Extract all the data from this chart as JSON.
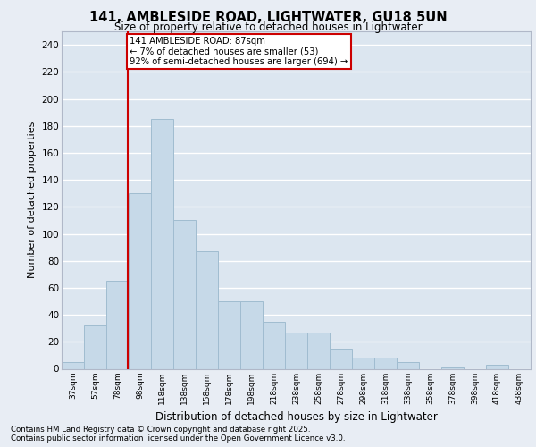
{
  "title1": "141, AMBLESIDE ROAD, LIGHTWATER, GU18 5UN",
  "title2": "Size of property relative to detached houses in Lightwater",
  "xlabel": "Distribution of detached houses by size in Lightwater",
  "ylabel": "Number of detached properties",
  "annotation_line1": "141 AMBLESIDE ROAD: 87sqm",
  "annotation_line2": "← 7% of detached houses are smaller (53)",
  "annotation_line3": "92% of semi-detached houses are larger (694) →",
  "categories": [
    "37sqm",
    "57sqm",
    "78sqm",
    "98sqm",
    "118sqm",
    "138sqm",
    "158sqm",
    "178sqm",
    "198sqm",
    "218sqm",
    "238sqm",
    "258sqm",
    "278sqm",
    "298sqm",
    "318sqm",
    "338sqm",
    "358sqm",
    "378sqm",
    "398sqm",
    "418sqm",
    "438sqm"
  ],
  "values": [
    5,
    32,
    65,
    130,
    185,
    110,
    87,
    50,
    50,
    35,
    27,
    27,
    15,
    8,
    8,
    5,
    0,
    1,
    0,
    3,
    0
  ],
  "bar_color": "#c6d9e8",
  "bar_edgecolor": "#a0bcd0",
  "property_line_color": "#cc0000",
  "annotation_box_edgecolor": "#cc0000",
  "bg_color": "#e8edf4",
  "plot_bg_color": "#dce6f0",
  "grid_color": "#ffffff",
  "ylim": [
    0,
    250
  ],
  "yticks": [
    0,
    20,
    40,
    60,
    80,
    100,
    120,
    140,
    160,
    180,
    200,
    220,
    240
  ],
  "property_bar_index": 2,
  "footer_line1": "Contains HM Land Registry data © Crown copyright and database right 2025.",
  "footer_line2": "Contains public sector information licensed under the Open Government Licence v3.0."
}
